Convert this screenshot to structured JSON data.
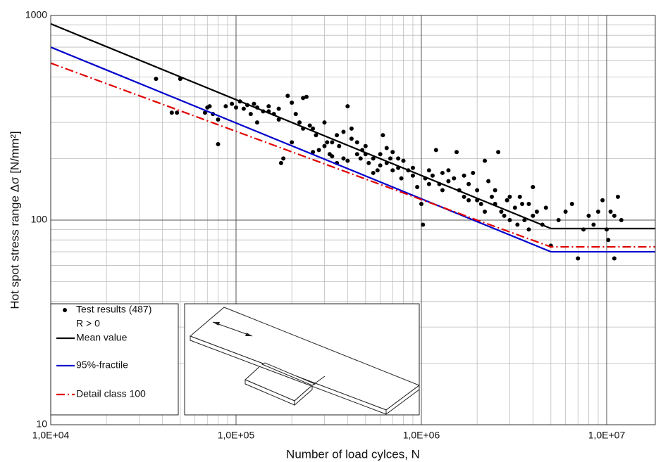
{
  "chart_data": {
    "type": "scatter",
    "x_label": "Number of load cylces, N",
    "y_label": "Hot spot stress range Δσ  [N/mm²]",
    "xlog": true,
    "ylog": true,
    "grid": true,
    "minor_grid": true,
    "xlim": [
      10000,
      18300000
    ],
    "ylim": [
      10,
      1000
    ],
    "xticks": [
      {
        "value": 10000,
        "label": "1,0E+04"
      },
      {
        "value": 100000,
        "label": "1,0E+05"
      },
      {
        "value": 1000000,
        "label": "1,0E+06"
      },
      {
        "value": 10000000,
        "label": "1,0E+07"
      }
    ],
    "yticks": [
      10,
      100,
      1000
    ],
    "legend_note": "R > 0",
    "series": [
      {
        "name": "Test results (487)",
        "color": "#000000",
        "kind": "points",
        "x": [
          37000,
          50000,
          45000,
          48000,
          68000,
          70000,
          72000,
          75000,
          80000,
          80000,
          88000,
          95000,
          100000,
          105000,
          110000,
          115000,
          120000,
          125000,
          130000,
          140000,
          150000,
          160000,
          170000,
          180000,
          175000,
          190000,
          200000,
          210000,
          220000,
          230000,
          240000,
          250000,
          260000,
          270000,
          280000,
          300000,
          310000,
          320000,
          330000,
          350000,
          360000,
          380000,
          400000,
          420000,
          450000,
          470000,
          500000,
          520000,
          550000,
          580000,
          600000,
          620000,
          650000,
          680000,
          700000,
          750000,
          780000,
          800000,
          850000,
          900000,
          950000,
          1000000,
          1020000,
          1050000,
          1100000,
          1150000,
          1200000,
          1250000,
          1300000,
          1400000,
          1500000,
          1550000,
          1600000,
          1700000,
          1800000,
          1900000,
          2000000,
          2100000,
          2200000,
          2300000,
          2400000,
          2500000,
          2600000,
          2700000,
          2900000,
          3000000,
          3200000,
          3400000,
          3600000,
          3800000,
          4000000,
          4200000,
          4500000,
          4700000,
          5000000,
          5500000,
          6000000,
          6500000,
          7000000,
          7500000,
          8000000,
          9000000,
          9500000,
          10000000,
          10200000,
          10500000,
          11000000,
          11500000,
          11000000,
          12000000,
          8500000,
          300000,
          350000,
          400000,
          450000,
          500000,
          550000,
          650000,
          700000,
          900000,
          1300000,
          1700000,
          2000000,
          2500000,
          3000000,
          3500000,
          4000000,
          200000,
          150000,
          130000,
          170000,
          230000,
          260000,
          330000,
          380000,
          420000,
          480000,
          600000,
          750000,
          1100000,
          1400000,
          1800000,
          2200000,
          2800000,
          3300000,
          3800000
        ],
        "values": [
          490,
          490,
          335,
          335,
          335,
          355,
          360,
          330,
          310,
          235,
          360,
          370,
          355,
          380,
          350,
          365,
          330,
          370,
          355,
          340,
          360,
          330,
          350,
          200,
          190,
          405,
          375,
          330,
          300,
          395,
          400,
          290,
          280,
          260,
          220,
          300,
          240,
          210,
          205,
          190,
          230,
          270,
          360,
          250,
          210,
          200,
          230,
          190,
          200,
          175,
          210,
          260,
          190,
          200,
          215,
          180,
          160,
          195,
          175,
          165,
          145,
          120,
          95,
          160,
          175,
          165,
          220,
          150,
          170,
          175,
          160,
          215,
          140,
          130,
          150,
          170,
          140,
          120,
          195,
          155,
          130,
          120,
          215,
          110,
          125,
          100,
          115,
          130,
          100,
          90,
          145,
          110,
          95,
          115,
          75,
          100,
          110,
          120,
          65,
          90,
          105,
          110,
          125,
          90,
          80,
          110,
          105,
          130,
          65,
          100,
          95,
          230,
          260,
          195,
          240,
          210,
          170,
          225,
          175,
          180,
          140,
          165,
          125,
          140,
          130,
          120,
          105,
          240,
          340,
          300,
          310,
          280,
          215,
          240,
          200,
          280,
          220,
          185,
          200,
          150,
          155,
          125,
          110,
          105,
          95,
          120
        ]
      },
      {
        "name": "Mean value",
        "color": "#000000",
        "kind": "line",
        "dash": "solid",
        "x": [
          10000,
          5000000,
          18300000
        ],
        "values": [
          910,
          91,
          91
        ]
      },
      {
        "name": "95%-fractile",
        "color": "#0000cc",
        "kind": "line",
        "dash": "solid",
        "x": [
          10000,
          5000000,
          18300000
        ],
        "values": [
          700,
          70,
          70
        ]
      },
      {
        "name": "Detail class 100",
        "color": "#e00000",
        "kind": "line",
        "dash": "dashdot",
        "x": [
          10000,
          2000000,
          5000000,
          18300000
        ],
        "values": [
          585,
          100,
          74,
          74
        ]
      }
    ]
  }
}
